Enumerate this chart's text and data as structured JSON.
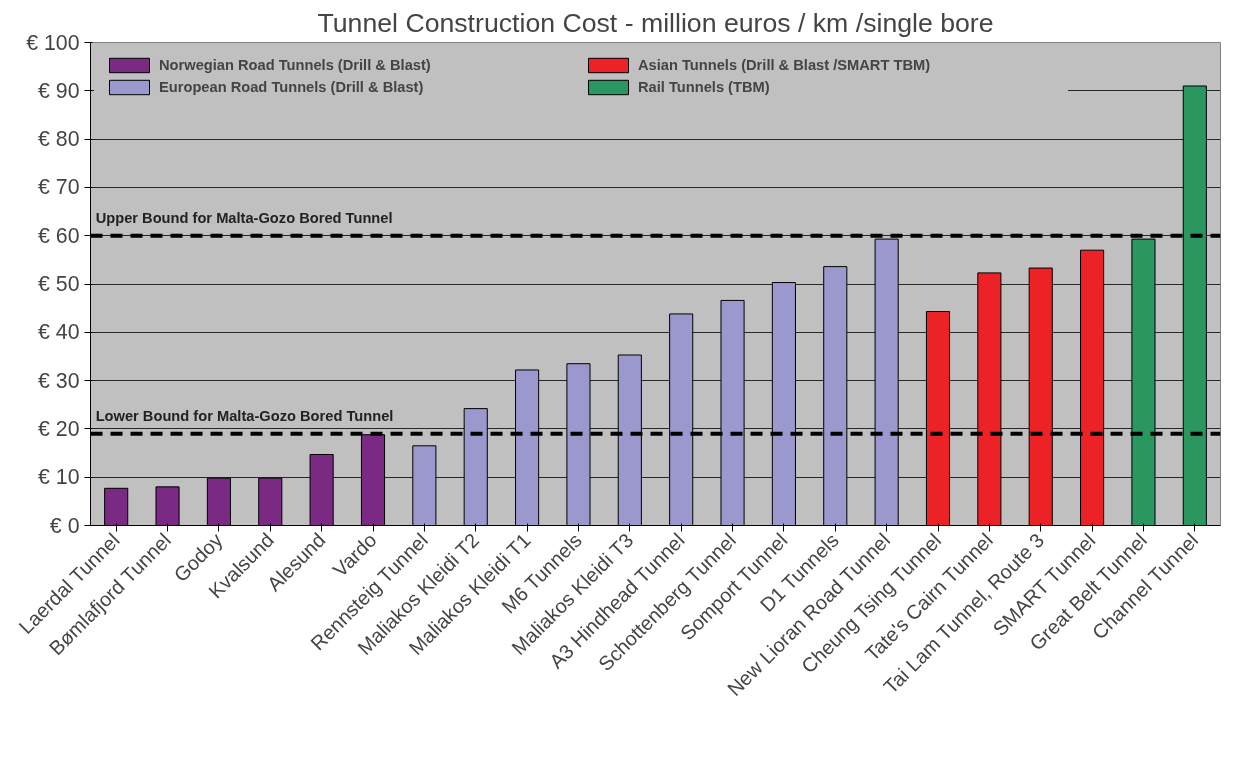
{
  "chart_data": {
    "type": "bar",
    "title": "Tunnel Construction Cost - million euros / km /single bore",
    "categories": [
      "Laerdal Tunnel",
      "Bømlafjord Tunnel",
      "Godoy",
      "Kvalsund",
      "Alesund",
      "Vardo",
      "Rennsteig Tunnel",
      "Maliakos Kleidi T2",
      "Maliakos Kleidi T1",
      "M6 Tunnels",
      "Maliakos Kleidi T3",
      "A3 Hindhead Tunnel",
      "Schottenberg Tunnel",
      "Somport Tunnel",
      "D1 Tunnels",
      "New Lioran Road Tunnel",
      "Cheung Tsing Tunnel",
      "Tate's Cairn Tunnel",
      "Tai Lam Tunnel, Route 3",
      "SMART Tunnel",
      "Great Belt Tunnel",
      "Channel Tunnel"
    ],
    "series": [
      {
        "name": "Norwegian Road Tunnels (Drill & Blast)",
        "color": "#7b2a84",
        "values": [
          7.7,
          8,
          9.8,
          9.8,
          14.7,
          18.8,
          null,
          null,
          null,
          null,
          null,
          null,
          null,
          null,
          null,
          null,
          null,
          null,
          null,
          null,
          null,
          null
        ]
      },
      {
        "name": "European Road Tunnels (Drill & Blast)",
        "color": "#9a98cc",
        "values": [
          null,
          null,
          null,
          null,
          null,
          null,
          16.5,
          24.2,
          32.2,
          33.5,
          35.3,
          43.8,
          46.6,
          50.3,
          53.6,
          59.3,
          null,
          null,
          null,
          null,
          null,
          null
        ]
      },
      {
        "name": "Asian Tunnels (Drill & Blast /SMART TBM)",
        "color": "#ec2227",
        "values": [
          null,
          null,
          null,
          null,
          null,
          null,
          null,
          null,
          null,
          null,
          null,
          null,
          null,
          null,
          null,
          null,
          44.3,
          52.3,
          53.3,
          57,
          null,
          null
        ]
      },
      {
        "name": "Rail Tunnels (TBM)",
        "color": "#2a9660",
        "values": [
          null,
          null,
          null,
          null,
          null,
          null,
          null,
          null,
          null,
          null,
          null,
          null,
          null,
          null,
          null,
          null,
          null,
          null,
          null,
          null,
          59.3,
          91
        ]
      }
    ],
    "ylim": [
      0,
      100
    ],
    "yticks": [
      {
        "value": 0,
        "label": "€ 0"
      },
      {
        "value": 10,
        "label": "€ 10"
      },
      {
        "value": 20,
        "label": "€ 20"
      },
      {
        "value": 30,
        "label": "€ 30"
      },
      {
        "value": 40,
        "label": "€ 40"
      },
      {
        "value": 50,
        "label": "€ 50"
      },
      {
        "value": 60,
        "label": "€ 60"
      },
      {
        "value": 70,
        "label": "€ 70"
      },
      {
        "value": 80,
        "label": "€ 80"
      },
      {
        "value": 90,
        "label": "€ 90"
      },
      {
        "value": 100,
        "label": "€ 100"
      }
    ],
    "ref_lines": [
      {
        "axis": "y",
        "value": 60,
        "label": "Upper Bound for Malta-Gozo Bored Tunnel",
        "color": "#000000",
        "line_style": "dashed"
      },
      {
        "axis": "y",
        "value": 19,
        "label": "Lower Bound for Malta-Gozo Bored Tunnel",
        "color": "#000000",
        "line_style": "dashed"
      }
    ],
    "grid": "y",
    "legend": "top"
  }
}
